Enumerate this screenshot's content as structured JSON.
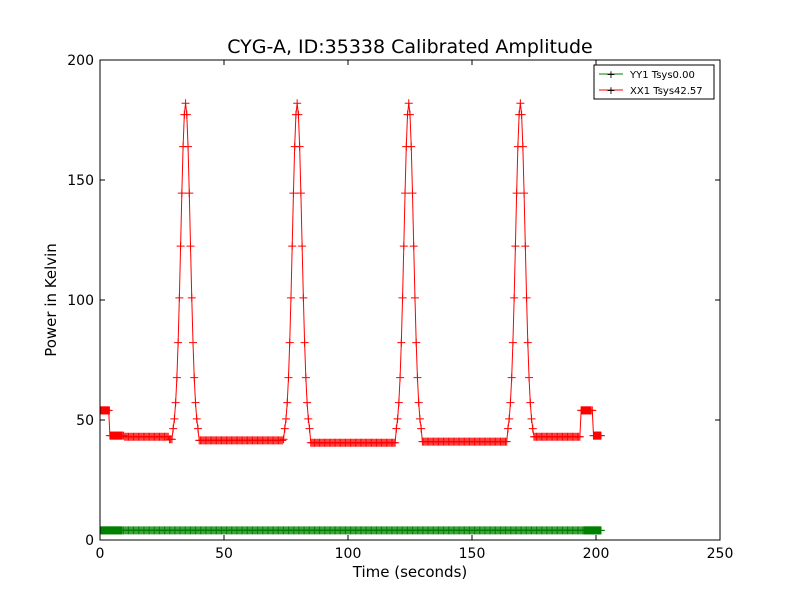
{
  "chart_data": {
    "type": "line",
    "title": "CYG-A, ID:35338 Calibrated Amplitude",
    "xlabel": "Time (seconds)",
    "ylabel": "Power in Kelvin",
    "xlim": [
      0,
      250
    ],
    "ylim": [
      0,
      200
    ],
    "xticks": [
      0,
      50,
      100,
      150,
      200,
      250
    ],
    "yticks": [
      0,
      50,
      100,
      150,
      200
    ],
    "xtick_labels": [
      "0",
      "50",
      "100",
      "150",
      "200",
      "250"
    ],
    "ytick_labels": [
      "0",
      "50",
      "100",
      "150",
      "200"
    ],
    "grid": false,
    "legend": {
      "position": "top-right",
      "entries": [
        "YY1 Tsys0.00",
        "XX1 Tsys42.57"
      ]
    },
    "marker": "+",
    "series": [
      {
        "name": "YY1 Tsys0.00",
        "color": "#008000",
        "x_start": 0,
        "x_end": 202,
        "x_step": 1,
        "baseline": 4,
        "square_marker_segments": [
          [
            0,
            9
          ],
          [
            195,
            202
          ]
        ],
        "dips": []
      },
      {
        "name": "XX1 Tsys42.57",
        "color": "#ff0000",
        "x_start": 0,
        "x_end": 202,
        "x_step": 1,
        "baseline": 42,
        "segments": [
          {
            "x0": 0,
            "x1": 4,
            "y": 54
          },
          {
            "x0": 4,
            "x1": 10,
            "y": 43.5
          },
          {
            "x0": 10,
            "x1": 28,
            "y": 43
          },
          {
            "x0": 38,
            "x1": 74,
            "y": 41.5
          },
          {
            "x0": 84,
            "x1": 120,
            "y": 40.5
          },
          {
            "x0": 129,
            "x1": 165,
            "y": 41
          },
          {
            "x0": 174,
            "x1": 194,
            "y": 43
          },
          {
            "x0": 194,
            "x1": 199,
            "y": 54
          },
          {
            "x0": 199,
            "x1": 203,
            "y": 43.5
          }
        ],
        "peaks": [
          {
            "x": 34.5,
            "y": 182
          },
          {
            "x": 79.5,
            "y": 182
          },
          {
            "x": 124.5,
            "y": 182
          },
          {
            "x": 169.5,
            "y": 182
          }
        ],
        "square_marker_segments": [
          [
            0,
            4
          ],
          [
            4,
            9
          ],
          [
            194,
            198
          ],
          [
            199,
            202
          ]
        ]
      }
    ]
  }
}
